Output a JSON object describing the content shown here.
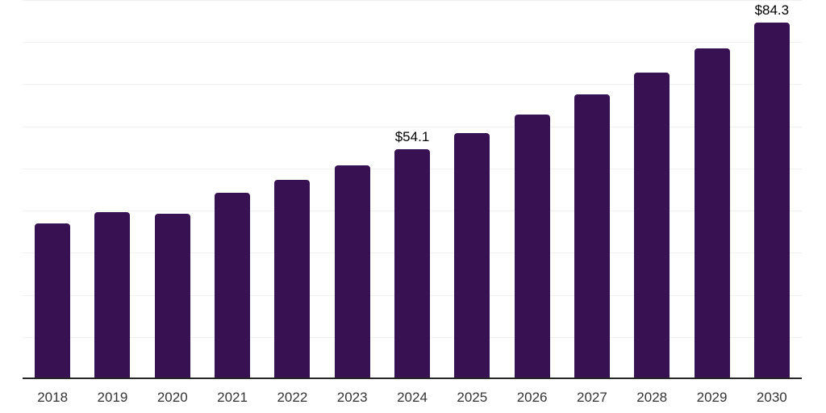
{
  "chart_data": {
    "type": "bar",
    "title": "",
    "xlabel": "",
    "ylabel": "",
    "categories": [
      "2018",
      "2019",
      "2020",
      "2021",
      "2022",
      "2023",
      "2024",
      "2025",
      "2026",
      "2027",
      "2028",
      "2029",
      "2030"
    ],
    "values": [
      36.6,
      39.3,
      38.8,
      43.9,
      47.0,
      50.3,
      54.1,
      58.1,
      62.5,
      67.2,
      72.4,
      78.1,
      84.3
    ],
    "value_labels": [
      "",
      "",
      "",
      "",
      "",
      "",
      "$54.1",
      "",
      "",
      "",
      "",
      "",
      "$84.3"
    ],
    "ylim": [
      0,
      90
    ],
    "gridline_step": 10,
    "grid": "horizontal-only",
    "legend_position": "none",
    "colors": {
      "bar": "#381152",
      "axis_line": "#262626",
      "tick_label": "#333333",
      "data_label": "#000000",
      "gridline": "#f0f0f0",
      "background": "#ffffff"
    }
  }
}
